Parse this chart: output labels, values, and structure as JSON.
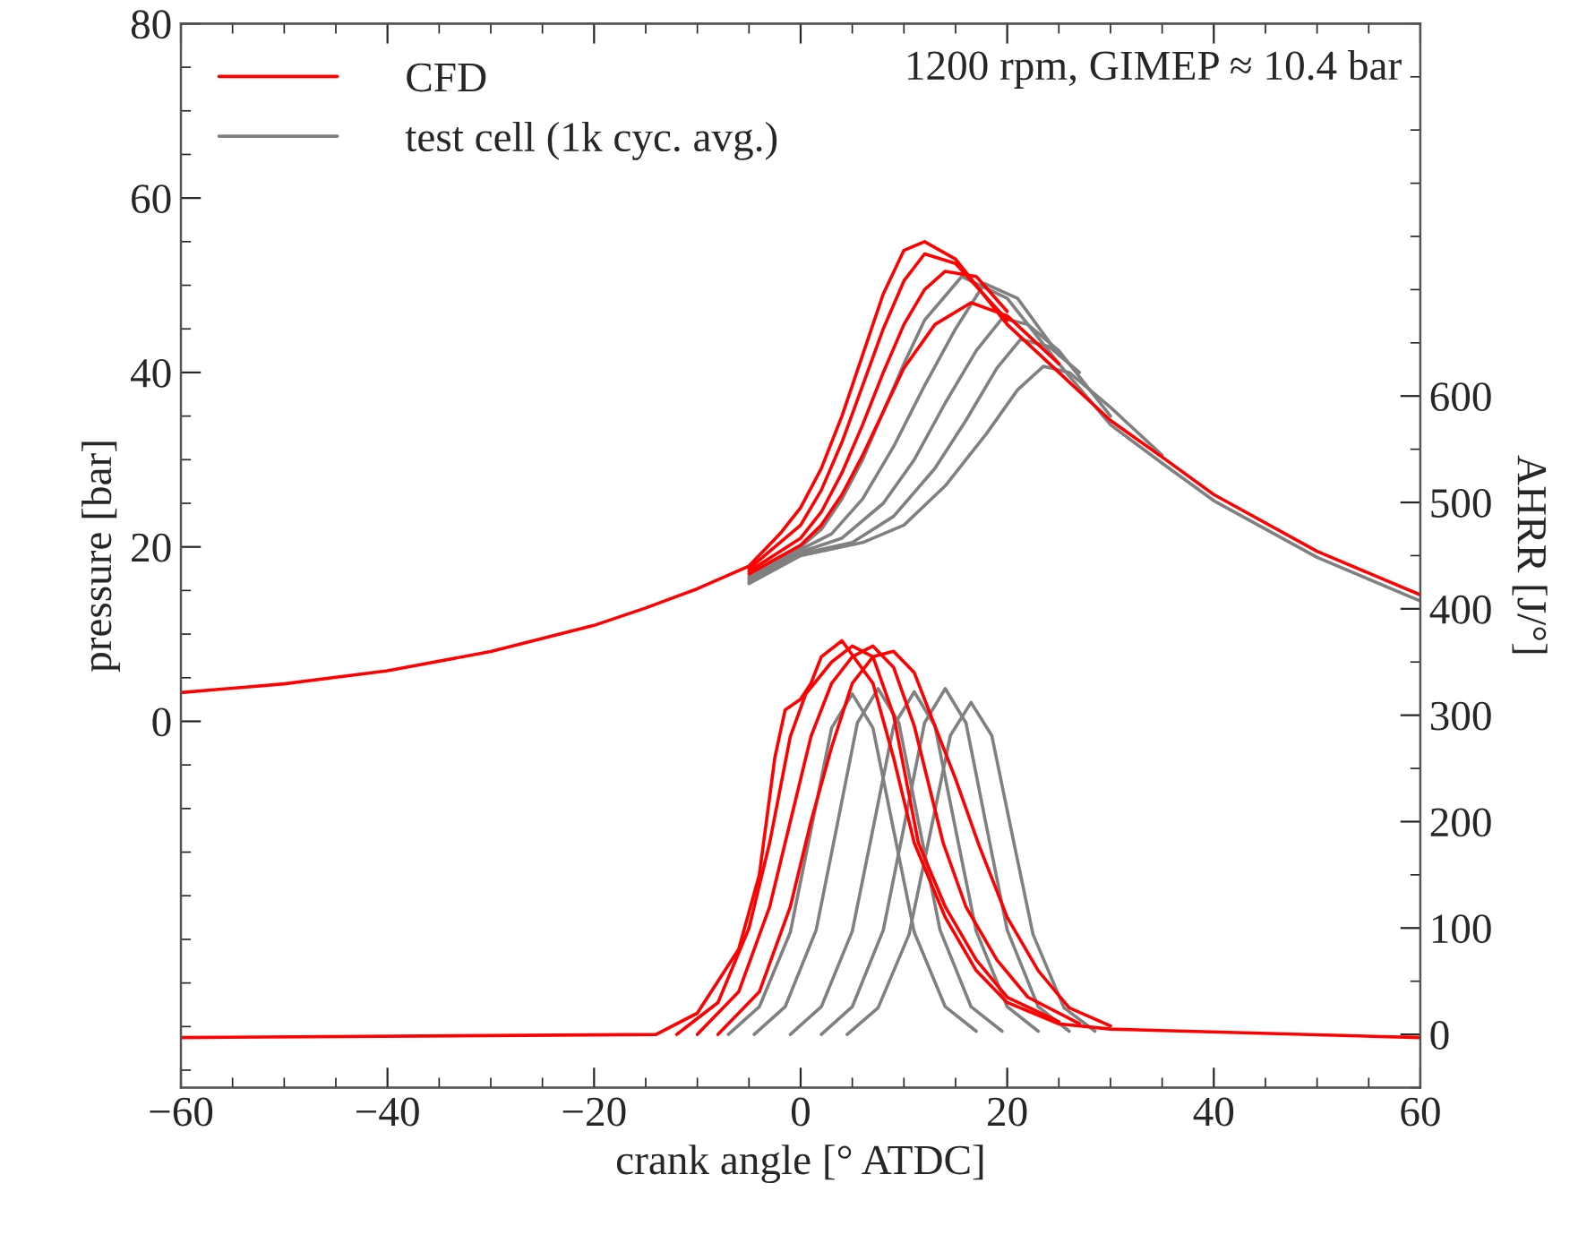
{
  "chart_data": {
    "type": "line",
    "xlabel": "crank angle [° ATDC]",
    "ylabel": "pressure [bar]",
    "y2label": "AHRR [J/°]",
    "xlim": [
      -60,
      60
    ],
    "xticks": [
      {
        "value": -60,
        "label": "−60"
      },
      {
        "value": -40,
        "label": "−40"
      },
      {
        "value": -20,
        "label": "−20"
      },
      0,
      20,
      40,
      60
    ],
    "ylim": [
      -42,
      80
    ],
    "yticks": [
      0,
      20,
      40,
      60,
      80
    ],
    "y2lim": [
      -50,
      950
    ],
    "y2ticks": [
      0,
      100,
      200,
      300,
      400,
      500,
      600
    ],
    "legend": "top left",
    "grid": false,
    "annotations": [
      "1200 rpm, GIMEP ≈ 10.4 bar"
    ],
    "series": [
      {
        "name": "CFD",
        "color": "#ff0000",
        "x": [
          -60,
          -50,
          -40,
          -30,
          -20,
          -15,
          -10,
          -5,
          -2,
          0,
          2,
          4,
          6,
          8,
          10,
          12,
          15,
          20,
          25,
          30,
          35,
          40,
          50,
          60
        ],
        "values": [
          3.3,
          4.3,
          5.8,
          8.0,
          11.0,
          13.0,
          15.2,
          17.8,
          21.5,
          24.5,
          29,
          35,
          42,
          49,
          54,
          55,
          53,
          45.5,
          40,
          34.5,
          30.3,
          26,
          19.5,
          14.5
        ]
      },
      {
        "color": "#ff0000",
        "x": [
          -5,
          0,
          2,
          4,
          6,
          8,
          10,
          12,
          15,
          20
        ],
        "values": [
          17.5,
          22.5,
          26.5,
          32,
          38.5,
          45,
          50.5,
          53.6,
          52.5,
          46
        ]
      },
      {
        "color": "#ff0000",
        "x": [
          -5,
          0,
          2,
          4,
          6,
          8,
          10,
          12,
          14,
          17,
          20
        ],
        "values": [
          17.2,
          21,
          24,
          28.5,
          34,
          40,
          45.5,
          49.5,
          51.6,
          51,
          47
        ]
      },
      {
        "color": "#ff0000",
        "x": [
          -5,
          0,
          2,
          4,
          6,
          8,
          10,
          13,
          16.5,
          20,
          25
        ],
        "values": [
          16.9,
          20.2,
          22.5,
          26,
          30.5,
          35.5,
          40.5,
          45.5,
          48,
          46.5,
          41
        ]
      },
      {
        "name": "test cell (1k cyc. avg.)",
        "color": "#808080",
        "x": [
          -5,
          0,
          2,
          4,
          6,
          8,
          10,
          12,
          15.6,
          20,
          25,
          30,
          35,
          40,
          50,
          60
        ],
        "values": [
          16.6,
          20,
          22,
          25.5,
          30,
          35.5,
          41,
          46,
          51,
          48.5,
          41,
          34.0,
          29.6,
          25.3,
          18.8,
          13.8
        ]
      },
      {
        "color": "#808080",
        "x": [
          -5,
          0,
          3,
          6,
          9,
          12,
          15,
          17.8,
          21,
          25
        ],
        "values": [
          16.4,
          19.7,
          21.5,
          25.5,
          31.5,
          38.5,
          45,
          50.2,
          48.5,
          42
        ]
      },
      {
        "color": "#808080",
        "x": [
          -5,
          0,
          4,
          8,
          11,
          14,
          17,
          19.5,
          22,
          25,
          30
        ],
        "values": [
          16.2,
          19.4,
          21,
          25,
          30,
          36.5,
          42.5,
          46.2,
          45.5,
          42.5,
          35
        ]
      },
      {
        "color": "#808080",
        "x": [
          -5,
          0,
          5,
          9,
          13,
          16,
          19,
          21.3,
          24,
          27
        ],
        "values": [
          16.0,
          19.2,
          20.5,
          23.5,
          29,
          34.5,
          40.5,
          43.8,
          43,
          40
        ]
      },
      {
        "color": "#808080",
        "x": [
          -5,
          0,
          6,
          10,
          14,
          18,
          21,
          23.5,
          26,
          30,
          35
        ],
        "values": [
          15.8,
          19,
          20.5,
          22.5,
          27,
          33,
          38,
          40.7,
          40,
          36,
          30.5
        ]
      },
      {
        "color": "#ff0000",
        "axis": "y2",
        "x": [
          -60,
          -14,
          -10,
          -6,
          -4,
          -2.5,
          -1.5,
          0,
          1,
          2,
          4,
          7,
          9,
          11,
          14,
          17,
          20,
          25,
          30,
          60
        ],
        "values": [
          -3,
          0,
          20,
          80,
          150,
          260,
          305,
          315,
          330,
          355,
          370,
          330,
          260,
          180,
          110,
          60,
          30,
          10,
          5,
          -3
        ]
      },
      {
        "color": "#ff0000",
        "axis": "y2",
        "x": [
          -12,
          -8,
          -5,
          -3,
          -1,
          0.5,
          3,
          5,
          7,
          9,
          11.4,
          14,
          17,
          20,
          25
        ],
        "values": [
          0,
          30,
          100,
          180,
          280,
          320,
          350,
          365,
          355,
          300,
          180,
          120,
          70,
          35,
          12
        ]
      },
      {
        "color": "#ff0000",
        "axis": "y2",
        "x": [
          -10,
          -6,
          -3,
          -1,
          1,
          3,
          5,
          7,
          9,
          11,
          13.8,
          16,
          19,
          22,
          27
        ],
        "values": [
          0,
          40,
          120,
          200,
          280,
          330,
          355,
          365,
          345,
          290,
          180,
          120,
          70,
          35,
          10
        ]
      },
      {
        "color": "#ff0000",
        "axis": "y2",
        "x": [
          -8,
          -4,
          -1,
          1,
          3,
          5,
          7,
          9,
          11,
          13,
          15,
          17.3,
          20,
          23,
          26,
          30
        ],
        "values": [
          0,
          40,
          120,
          200,
          270,
          330,
          355,
          360,
          340,
          290,
          240,
          177,
          110,
          60,
          25,
          8
        ]
      },
      {
        "color": "#808080",
        "axis": "y2",
        "x": [
          -7,
          -4,
          -1,
          1,
          3,
          5,
          7,
          9,
          11,
          14,
          17
        ],
        "values": [
          0,
          26,
          96,
          192,
          288,
          320,
          288,
          192,
          96,
          26,
          3
        ]
      },
      {
        "color": "#808080",
        "axis": "y2",
        "x": [
          -4.5,
          -1.5,
          1.5,
          3.5,
          5.5,
          7.5,
          9.5,
          11.5,
          13.5,
          16.5,
          19.5
        ],
        "values": [
          0,
          26,
          98,
          195,
          293,
          325,
          293,
          195,
          98,
          26,
          3
        ]
      },
      {
        "color": "#808080",
        "axis": "y2",
        "x": [
          -1,
          2,
          5,
          7,
          9,
          11,
          13,
          15,
          17,
          20,
          23
        ],
        "values": [
          0,
          26,
          97,
          193,
          290,
          322,
          290,
          193,
          97,
          26,
          3
        ]
      },
      {
        "color": "#808080",
        "axis": "y2",
        "x": [
          2,
          5,
          8,
          10,
          12,
          14,
          16,
          18,
          20,
          23,
          26
        ],
        "values": [
          0,
          26,
          98,
          195,
          293,
          325,
          293,
          195,
          98,
          26,
          3
        ]
      },
      {
        "color": "#808080",
        "axis": "y2",
        "x": [
          4.5,
          7.5,
          10.5,
          12.5,
          14.5,
          16.5,
          18.5,
          20.5,
          22.5,
          25.5,
          28.5
        ],
        "values": [
          0,
          25,
          94,
          187,
          281,
          312,
          281,
          187,
          94,
          25,
          3
        ]
      }
    ]
  }
}
